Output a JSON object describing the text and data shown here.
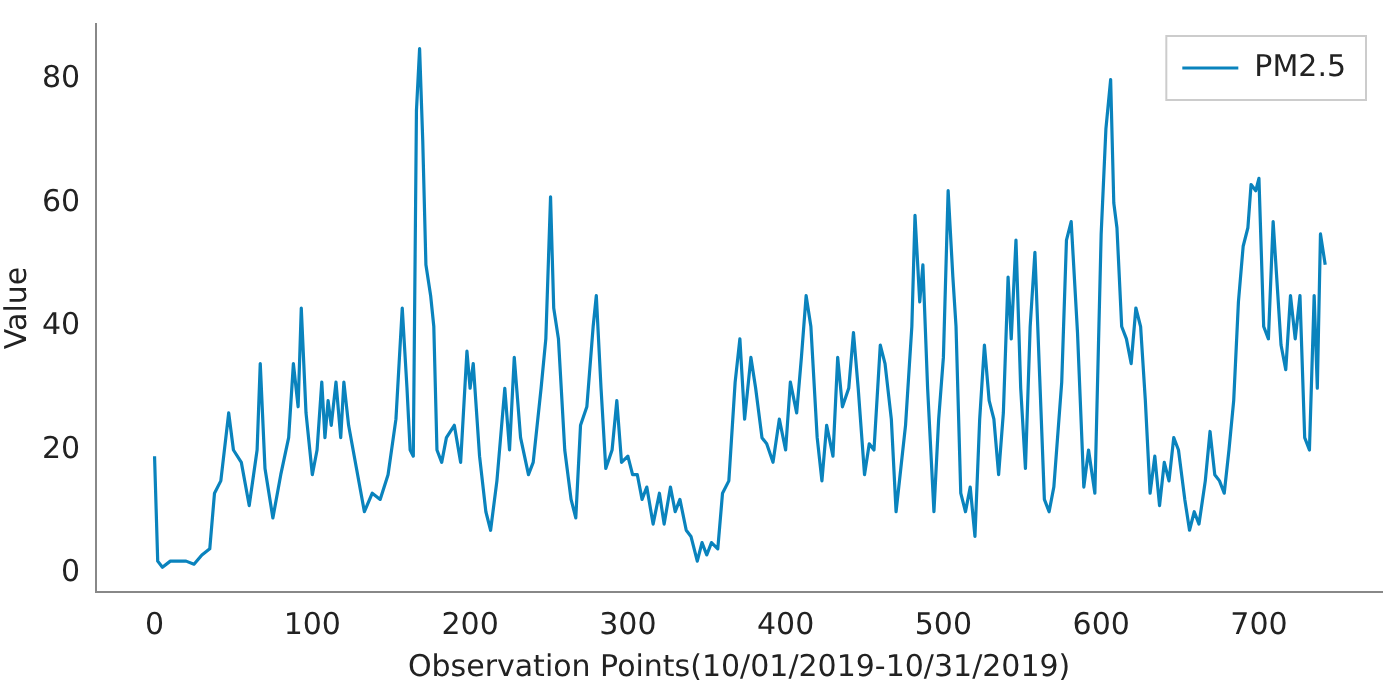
{
  "chart_data": {
    "type": "line",
    "xlabel": "Observation Points(10/01/2019-10/31/2019)",
    "ylabel": "Value",
    "xlim": [
      -37,
      778
    ],
    "ylim": [
      -3,
      89
    ],
    "xticks": [
      0,
      100,
      200,
      300,
      400,
      500,
      600,
      700
    ],
    "yticks": [
      0,
      20,
      40,
      60,
      80
    ],
    "grid": false,
    "legend": "top right",
    "marker": "none",
    "line_style": "solid",
    "series": [
      {
        "name": "PM2.5",
        "color": "#0a83bd",
        "x": [
          0,
          2,
          5,
          10,
          20,
          25,
          30,
          35,
          38,
          42,
          47,
          50,
          55,
          60,
          65,
          67,
          70,
          75,
          80,
          85,
          88,
          91,
          93,
          96,
          100,
          103,
          106,
          108,
          110,
          112,
          115,
          118,
          120,
          123,
          128,
          133,
          138,
          143,
          148,
          153,
          157,
          160,
          162,
          164,
          166,
          168,
          170,
          172,
          175,
          177,
          179,
          182,
          185,
          190,
          194,
          198,
          200,
          202,
          206,
          210,
          213,
          217,
          222,
          225,
          228,
          232,
          237,
          240,
          245,
          248,
          251,
          253,
          256,
          260,
          264,
          267,
          270,
          274,
          278,
          280,
          283,
          286,
          290,
          293,
          296,
          300,
          303,
          306,
          309,
          312,
          316,
          320,
          323,
          327,
          330,
          333,
          337,
          340,
          344,
          347,
          350,
          353,
          357,
          360,
          364,
          368,
          371,
          374,
          378,
          381,
          385,
          388,
          392,
          396,
          400,
          403,
          407,
          410,
          413,
          416,
          420,
          423,
          426,
          430,
          433,
          436,
          440,
          443,
          446,
          450,
          453,
          456,
          460,
          463,
          467,
          470,
          473,
          476,
          480,
          482,
          485,
          487,
          490,
          494,
          497,
          500,
          503,
          506,
          508,
          511,
          514,
          517,
          520,
          523,
          526,
          529,
          532,
          535,
          538,
          541,
          543,
          546,
          549,
          552,
          555,
          558,
          561,
          564,
          567,
          570,
          575,
          578,
          581,
          585,
          589,
          592,
          596,
          600,
          603,
          606,
          608,
          610,
          613,
          616,
          619,
          622,
          625,
          628,
          631,
          634,
          637,
          640,
          643,
          646,
          649,
          653,
          656,
          659,
          662,
          666,
          669,
          672,
          675,
          678,
          681,
          684,
          687,
          690,
          693,
          695,
          698,
          700,
          703,
          706,
          709,
          712,
          714,
          717,
          720,
          723,
          726,
          729,
          732,
          735,
          737,
          739,
          742
        ],
        "values": [
          19,
          2,
          1,
          2,
          2,
          1.5,
          3,
          4,
          13,
          15,
          26,
          20,
          18,
          11,
          20,
          34,
          17,
          9,
          16,
          22,
          34,
          27,
          43,
          26,
          16,
          20,
          31,
          22,
          28,
          24,
          31,
          22,
          31,
          24,
          17,
          10,
          13,
          12,
          16,
          25,
          43,
          30,
          20,
          19,
          75,
          85,
          70,
          50,
          45,
          40,
          20,
          18,
          22,
          24,
          18,
          36,
          30,
          34,
          19,
          10,
          7,
          15,
          30,
          20,
          35,
          22,
          16,
          18,
          30,
          38,
          61,
          43,
          38,
          20,
          12,
          9,
          24,
          27,
          40,
          45,
          30,
          17,
          20,
          28,
          18,
          19,
          16,
          16,
          12,
          14,
          8,
          13,
          8,
          14,
          10,
          12,
          7,
          6,
          2,
          5,
          3,
          5,
          4,
          13,
          15,
          31,
          38,
          25,
          35,
          30,
          22,
          21,
          18,
          25,
          20,
          31,
          26,
          35,
          45,
          40,
          22,
          15,
          24,
          19,
          35,
          27,
          30,
          39,
          30,
          16,
          21,
          20,
          37,
          34,
          25,
          10,
          17,
          24,
          40,
          58,
          44,
          50,
          30,
          10,
          25,
          35,
          62,
          48,
          40,
          13,
          10,
          14,
          6,
          25,
          37,
          28,
          25,
          16,
          26,
          48,
          38,
          54,
          30,
          17,
          40,
          52,
          32,
          12,
          10,
          14,
          31,
          54,
          57,
          39,
          14,
          20,
          13,
          55,
          72,
          80,
          60,
          56,
          40,
          38,
          34,
          43,
          40,
          28,
          13,
          19,
          11,
          18,
          15,
          22,
          20,
          12,
          7,
          10,
          8,
          15,
          23,
          16,
          15,
          13,
          20,
          28,
          44,
          53,
          56,
          63,
          62,
          64,
          40,
          38,
          57,
          45,
          37,
          33,
          45,
          38,
          45,
          22,
          20,
          45,
          30,
          55,
          50
        ]
      }
    ]
  }
}
